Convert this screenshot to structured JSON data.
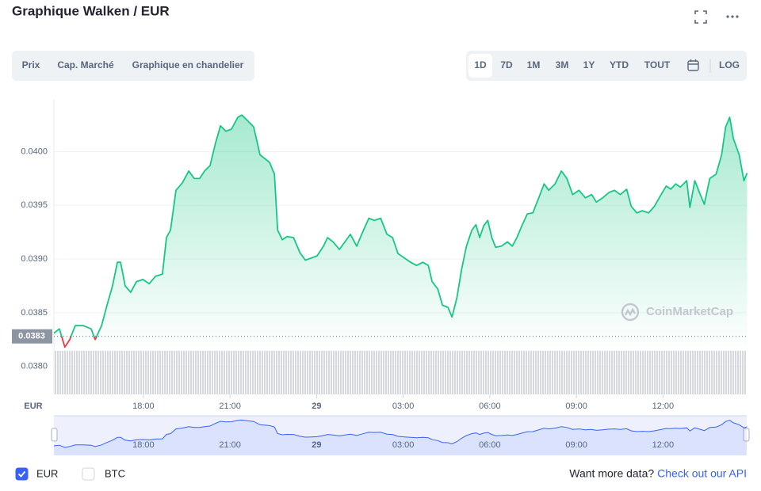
{
  "header": {
    "title": "Graphique Walken / EUR"
  },
  "tabs": [
    "Prix",
    "Cap. Marché",
    "Graphique en chandelier"
  ],
  "ranges": [
    "1D",
    "7D",
    "1M",
    "3M",
    "1Y",
    "YTD",
    "TOUT"
  ],
  "active_range_index": 0,
  "log_label": "LOG",
  "chart_data": {
    "type": "line",
    "axis_label": "EUR",
    "watermark": "CoinMarketCap",
    "x": [
      14.9,
      15.09,
      15.28,
      15.45,
      15.64,
      15.92,
      16.19,
      16.33,
      16.55,
      16.74,
      16.93,
      17.1,
      17.21,
      17.37,
      17.56,
      17.76,
      17.98,
      18.2,
      18.42,
      18.66,
      18.8,
      18.94,
      19.13,
      19.35,
      19.57,
      19.76,
      19.95,
      20.12,
      20.31,
      20.5,
      20.67,
      20.86,
      21.05,
      21.27,
      21.41,
      21.6,
      21.82,
      22.04,
      22.37,
      22.54,
      22.65,
      22.81,
      22.98,
      23.2,
      23.42,
      23.61,
      23.83,
      24.02,
      24.24,
      24.38,
      24.57,
      24.79,
      24.98,
      25.17,
      25.39,
      25.61,
      25.81,
      26.0,
      26.22,
      26.44,
      26.63,
      26.82,
      27.04,
      27.26,
      27.46,
      27.68,
      27.87,
      28.0,
      28.2,
      28.36,
      28.55,
      28.69,
      28.86,
      29.02,
      29.19,
      29.38,
      29.52,
      29.65,
      29.79,
      29.93,
      30.07,
      30.2,
      30.4,
      30.61,
      30.78,
      30.94,
      31.11,
      31.3,
      31.49,
      31.71,
      31.88,
      32.04,
      32.26,
      32.48,
      32.67,
      32.87,
      33.09,
      33.31,
      33.53,
      33.69,
      33.91,
      34.13,
      34.32,
      34.52,
      34.74,
      34.9,
      35.09,
      35.28,
      35.5,
      35.7,
      35.89,
      36.11,
      36.27,
      36.44,
      36.6,
      36.82,
      36.93,
      37.1,
      37.26,
      37.43,
      37.62,
      37.84,
      38.03,
      38.17,
      38.31,
      38.44,
      38.64,
      38.8,
      38.91
    ],
    "series": [
      {
        "name": "EUR",
        "color": "#16c784",
        "down_color": "#ea3943",
        "navigator_color": "#3861fb",
        "values": [
          0.03831,
          0.03835,
          0.03818,
          0.03825,
          0.03838,
          0.03838,
          0.03835,
          0.03825,
          0.03838,
          0.03857,
          0.03875,
          0.03897,
          0.03897,
          0.03875,
          0.03869,
          0.03879,
          0.03881,
          0.03877,
          0.03884,
          0.03886,
          0.0392,
          0.03927,
          0.03964,
          0.03971,
          0.03982,
          0.03975,
          0.03975,
          0.03982,
          0.03987,
          0.04008,
          0.04024,
          0.04019,
          0.04021,
          0.04032,
          0.04034,
          0.04029,
          0.04023,
          0.03997,
          0.0399,
          0.03979,
          0.03927,
          0.03918,
          0.03921,
          0.0392,
          0.03906,
          0.03899,
          0.03901,
          0.03903,
          0.03912,
          0.0392,
          0.03916,
          0.03909,
          0.03916,
          0.03923,
          0.03912,
          0.03926,
          0.03938,
          0.03936,
          0.03938,
          0.03923,
          0.0392,
          0.03905,
          0.03901,
          0.03897,
          0.03894,
          0.03897,
          0.03894,
          0.03879,
          0.03872,
          0.03857,
          0.03855,
          0.03846,
          0.03864,
          0.0389,
          0.03912,
          0.03927,
          0.03932,
          0.0392,
          0.03931,
          0.03936,
          0.0392,
          0.03911,
          0.03912,
          0.03916,
          0.03912,
          0.0392,
          0.03931,
          0.03942,
          0.03943,
          0.03958,
          0.0397,
          0.03964,
          0.0397,
          0.03982,
          0.03975,
          0.0396,
          0.03964,
          0.03957,
          0.0396,
          0.03953,
          0.03957,
          0.03962,
          0.03964,
          0.0396,
          0.03965,
          0.03949,
          0.03943,
          0.03945,
          0.03943,
          0.03949,
          0.03958,
          0.03968,
          0.03965,
          0.0397,
          0.03967,
          0.03973,
          0.03948,
          0.03973,
          0.03962,
          0.03951,
          0.03975,
          0.03979,
          0.03997,
          0.04023,
          0.04032,
          0.04012,
          0.03997,
          0.03973,
          0.0398
        ]
      }
    ],
    "reference": {
      "value": 0.03828,
      "label": "0.0383"
    },
    "xlim": [
      14.9,
      38.9
    ],
    "ylim": [
      0.03774,
      0.04049
    ],
    "xticks": [
      {
        "value": 18,
        "label": "18:00"
      },
      {
        "value": 21,
        "label": "21:00"
      },
      {
        "value": 24,
        "label": "29"
      },
      {
        "value": 27,
        "label": "03:00"
      },
      {
        "value": 30,
        "label": "06:00"
      },
      {
        "value": 33,
        "label": "09:00"
      },
      {
        "value": 36,
        "label": "12:00"
      }
    ],
    "yticks": [
      {
        "value": 0.038,
        "label": "0.0380"
      },
      {
        "value": 0.0385,
        "label": "0.0385"
      },
      {
        "value": 0.039,
        "label": "0.0390"
      },
      {
        "value": 0.0395,
        "label": "0.0395"
      },
      {
        "value": 0.04,
        "label": "0.0400"
      }
    ],
    "grid": true
  },
  "footer": {
    "series_checked": true,
    "other_toggle": "BTC",
    "other_checked": false,
    "prompt": "Want more data?",
    "link": "Check out our API"
  }
}
